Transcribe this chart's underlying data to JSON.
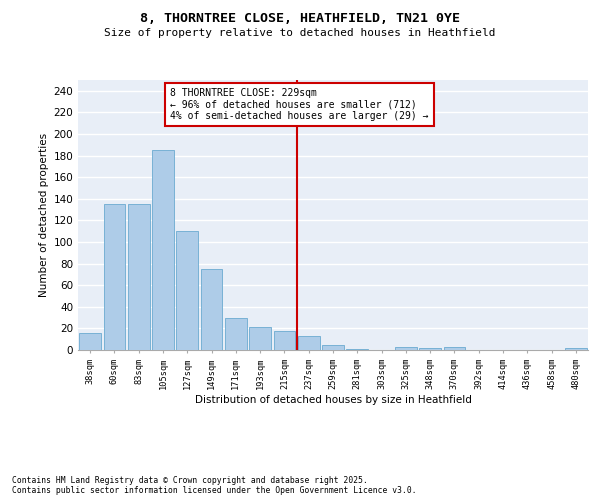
{
  "title": "8, THORNTREE CLOSE, HEATHFIELD, TN21 0YE",
  "subtitle": "Size of property relative to detached houses in Heathfield",
  "xlabel": "Distribution of detached houses by size in Heathfield",
  "ylabel": "Number of detached properties",
  "categories": [
    "38sqm",
    "60sqm",
    "83sqm",
    "105sqm",
    "127sqm",
    "149sqm",
    "171sqm",
    "193sqm",
    "215sqm",
    "237sqm",
    "259sqm",
    "281sqm",
    "303sqm",
    "325sqm",
    "348sqm",
    "370sqm",
    "392sqm",
    "414sqm",
    "436sqm",
    "458sqm",
    "480sqm"
  ],
  "values": [
    16,
    135,
    135,
    185,
    110,
    75,
    30,
    21,
    18,
    13,
    5,
    1,
    0,
    3,
    2,
    3,
    0,
    0,
    0,
    0,
    2
  ],
  "bar_color": "#aecce8",
  "bar_edge_color": "#6baad0",
  "vline_x": 9.0,
  "vline_color": "#cc0000",
  "annotation_text": "8 THORNTREE CLOSE: 229sqm\n← 96% of detached houses are smaller (712)\n4% of semi-detached houses are larger (29) →",
  "ylim": [
    0,
    250
  ],
  "yticks": [
    0,
    20,
    40,
    60,
    80,
    100,
    120,
    140,
    160,
    180,
    200,
    220,
    240
  ],
  "background_color": "#e8eef7",
  "grid_color": "#ffffff",
  "footer": "Contains HM Land Registry data © Crown copyright and database right 2025.\nContains public sector information licensed under the Open Government Licence v3.0."
}
